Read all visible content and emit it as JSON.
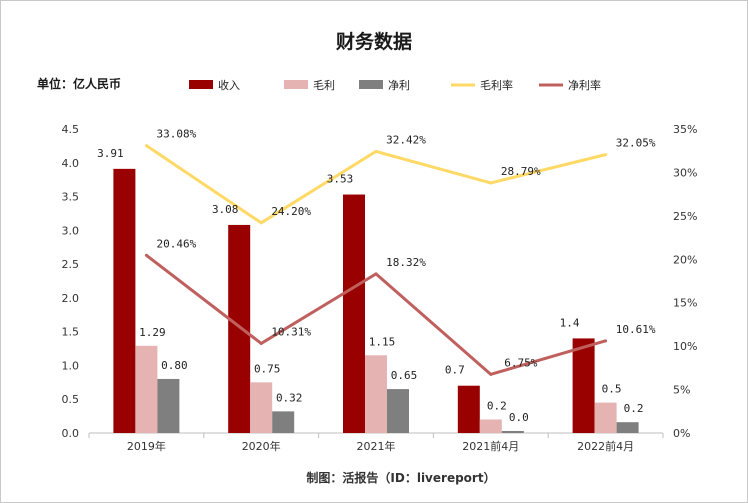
{
  "chart_data": {
    "type": "bar",
    "title": "财务数据",
    "unit_label": "单位：亿人民币",
    "footer": "制图：活报告（ID：livereport）",
    "categories": [
      "2019年",
      "2020年",
      "2021年",
      "2021前4月",
      "2022前4月"
    ],
    "series": [
      {
        "name": "收入",
        "kind": "bar",
        "color": "#990000",
        "axis": "left",
        "values": [
          3.91,
          3.08,
          3.53,
          0.7,
          1.4
        ],
        "labels": [
          "3.91",
          "3.08",
          "3.53",
          "0.7",
          "1.4"
        ]
      },
      {
        "name": "毛利",
        "kind": "bar",
        "color": "#e6b3b3",
        "axis": "left",
        "values": [
          1.29,
          0.75,
          1.15,
          0.2,
          0.45
        ],
        "labels": [
          "1.29",
          "0.75",
          "1.15",
          "0.2",
          "0.5"
        ]
      },
      {
        "name": "净利",
        "kind": "bar",
        "color": "#7f7f7f",
        "axis": "left",
        "values": [
          0.8,
          0.32,
          0.65,
          0.03,
          0.16
        ],
        "labels": [
          "0.80",
          "0.32",
          "0.65",
          "0.0",
          "0.2"
        ]
      },
      {
        "name": "毛利率",
        "kind": "line",
        "color": "#ffd966",
        "axis": "right",
        "values": [
          33.08,
          24.2,
          32.42,
          28.79,
          32.05
        ],
        "labels": [
          "33.08%",
          "24.20%",
          "32.42%",
          "28.79%",
          "32.05%"
        ]
      },
      {
        "name": "净利率",
        "kind": "line",
        "color": "#c0605e",
        "axis": "right",
        "values": [
          20.46,
          10.31,
          18.32,
          6.75,
          10.61
        ],
        "labels": [
          "20.46%",
          "10.31%",
          "18.32%",
          "6.75%",
          "10.61%"
        ]
      }
    ],
    "y_left": {
      "min": 0,
      "max": 4.5,
      "ticks": [
        "0.0",
        "0.5",
        "1.0",
        "1.5",
        "2.0",
        "2.5",
        "3.0",
        "3.5",
        "4.0",
        "4.5"
      ]
    },
    "y_right": {
      "min": 0,
      "max": 35,
      "ticks": [
        "0%",
        "5%",
        "10%",
        "15%",
        "20%",
        "25%",
        "30%",
        "35%"
      ]
    },
    "legend_position": "top",
    "grid": false
  }
}
